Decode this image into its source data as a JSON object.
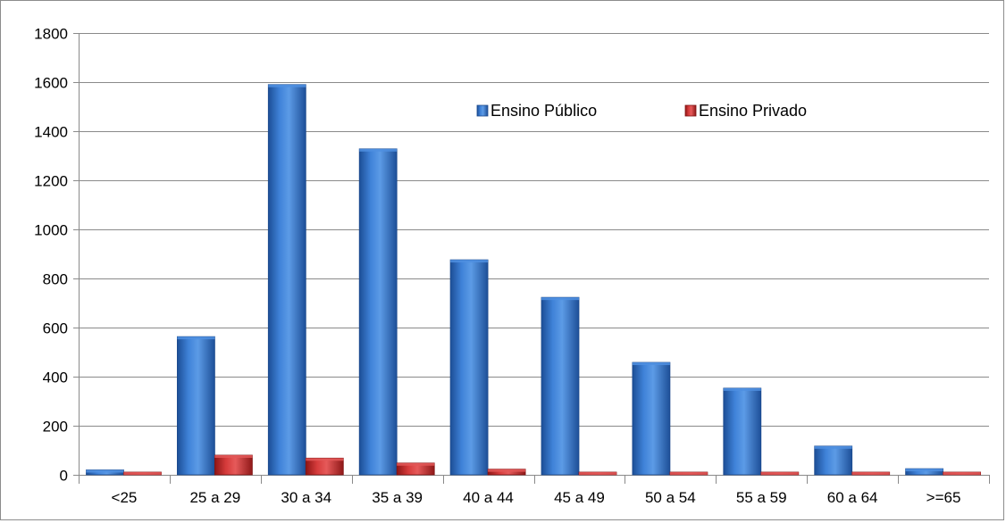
{
  "chart_data": {
    "type": "bar",
    "categories": [
      "<25",
      "25 a 29",
      "30 a 34",
      "35 a 39",
      "40 a 44",
      "45 a 49",
      "50 a 54",
      "55 a 59",
      "60 a 64",
      ">=65"
    ],
    "series": [
      {
        "name": "Ensino Público",
        "color": "#2f6fc4",
        "values": [
          20,
          563,
          1590,
          1328,
          876,
          723,
          458,
          353,
          117,
          25
        ]
      },
      {
        "name": "Ensino Privado",
        "color": "#c93030",
        "values": [
          10,
          80,
          68,
          48,
          23,
          10,
          8,
          8,
          8,
          8
        ]
      }
    ],
    "ylim": [
      0,
      1800
    ],
    "yticks": [
      0,
      200,
      400,
      600,
      800,
      1000,
      1200,
      1400,
      1600,
      1800
    ],
    "grid": true,
    "legend": "top-right"
  }
}
